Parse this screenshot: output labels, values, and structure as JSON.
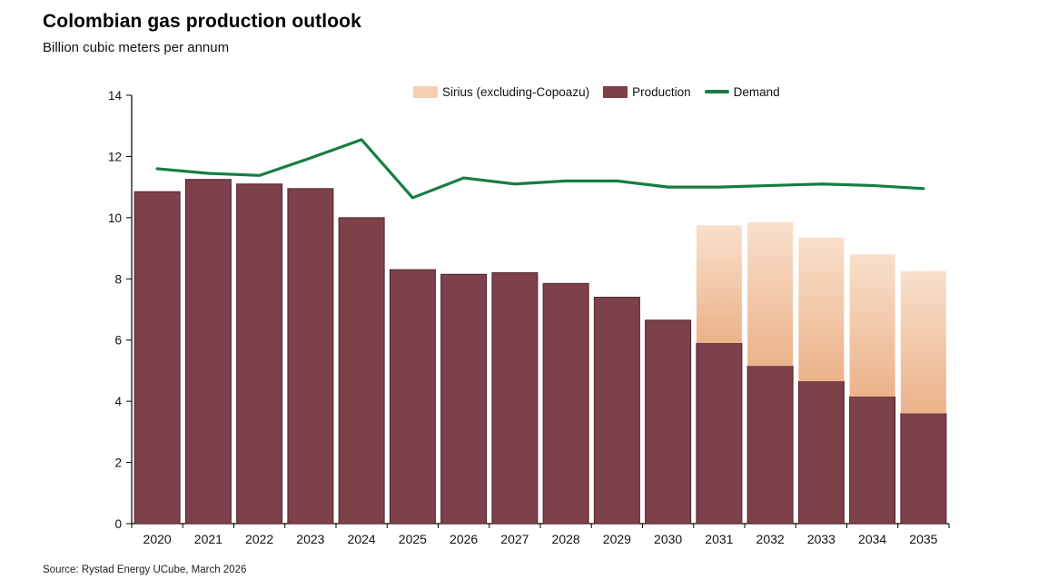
{
  "header": {
    "title": "Colombian gas production outlook",
    "subtitle": "Billion cubic meters per annum"
  },
  "footer": {
    "source": "Source: Rystad Energy UCube, March 2026"
  },
  "chart_data": {
    "type": "bar",
    "stacked": true,
    "title": "Colombian gas production outlook",
    "subtitle": "Billion cubic meters per annum",
    "xlabel": "",
    "ylabel": "Billion cubic meters per annum",
    "ylim": [
      0,
      14
    ],
    "yticks": [
      0,
      2,
      4,
      6,
      8,
      10,
      12,
      14
    ],
    "grid": false,
    "legend_position": "top-center",
    "categories": [
      "2020",
      "2021",
      "2022",
      "2023",
      "2024",
      "2025",
      "2026",
      "2027",
      "2028",
      "2029",
      "2030",
      "2031",
      "2032",
      "2033",
      "2034",
      "2035"
    ],
    "series": [
      {
        "name": "Production",
        "type": "bar",
        "color": "#7c414b",
        "stroke": "#4f262d",
        "values": [
          10.85,
          11.25,
          11.1,
          10.95,
          10.0,
          8.3,
          8.15,
          8.2,
          7.85,
          7.4,
          6.65,
          5.9,
          5.15,
          4.65,
          4.15,
          3.6
        ]
      },
      {
        "name": "Sirius (excluding-Copoazu)",
        "type": "bar",
        "color_top": "#f8e0cb",
        "color_bottom": "#ecb28a",
        "legend_color": "#f5cfae",
        "values": [
          0,
          0,
          0,
          0,
          0,
          0,
          0,
          0,
          0,
          0,
          0,
          3.85,
          4.7,
          4.7,
          4.65,
          4.65
        ]
      },
      {
        "name": "Demand",
        "type": "line",
        "color": "#177d41",
        "values": [
          11.6,
          11.45,
          11.38,
          11.95,
          12.55,
          10.65,
          11.3,
          11.1,
          11.2,
          11.2,
          11.0,
          11.0,
          11.05,
          11.1,
          11.05,
          10.95
        ]
      }
    ],
    "legend": [
      {
        "label": "Sirius (excluding-Copoazu)"
      },
      {
        "label": "Production"
      },
      {
        "label": "Demand"
      }
    ]
  }
}
